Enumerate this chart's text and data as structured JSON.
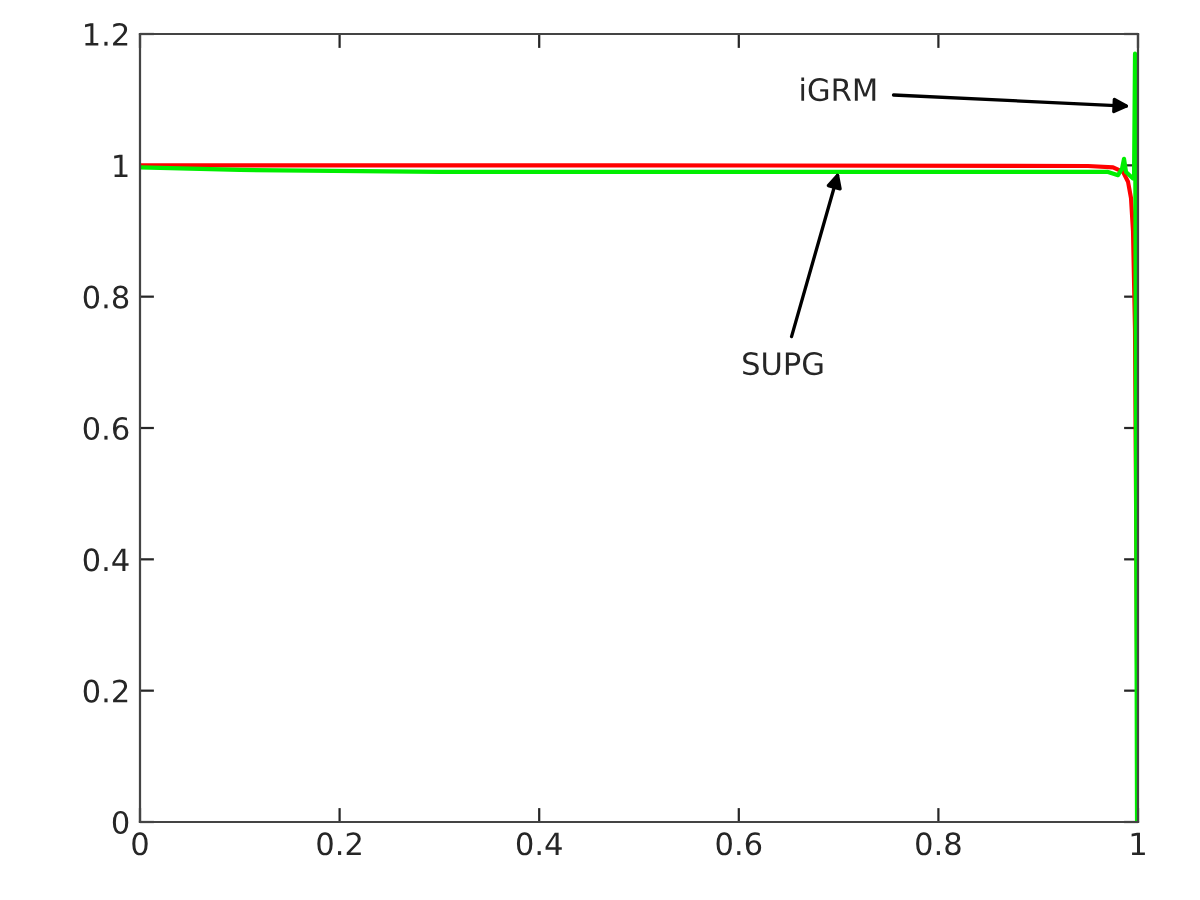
{
  "chart_data": {
    "type": "line",
    "series": [
      {
        "color": "#ff0000",
        "x": [
          0,
          0.5,
          0.95,
          0.975,
          0.985,
          0.99,
          0.993,
          0.995,
          0.997,
          0.998,
          0.999,
          1.0
        ],
        "values": [
          1.0,
          1.0,
          0.999,
          0.997,
          0.99,
          0.975,
          0.95,
          0.9,
          0.75,
          null,
          null,
          0
        ]
      },
      {
        "color": "#00ee00",
        "x": [
          0,
          0.1,
          0.3,
          0.6,
          0.9,
          0.97,
          0.98,
          0.984,
          0.986,
          0.988,
          0.995,
          0.996,
          0.997,
          0.999,
          1.0
        ],
        "values": [
          0.997,
          0.993,
          0.99,
          0.99,
          0.99,
          0.99,
          0.985,
          0.995,
          1.01,
          0.99,
          0.98,
          0.98,
          1.17,
          0,
          0
        ]
      }
    ],
    "annotations": [
      {
        "text": "iGRM",
        "x": 0.992,
        "y": 1.09
      },
      {
        "text": "SUPG",
        "x": 0.7,
        "y": 0.99
      }
    ],
    "xlim": [
      0,
      1
    ],
    "ylim": [
      0,
      1.2
    ],
    "xticks": [
      0,
      0.2,
      0.4,
      0.6,
      0.8,
      1
    ],
    "yticks": [
      0,
      0.2,
      0.4,
      0.6,
      0.8,
      1,
      1.2
    ],
    "grid": false,
    "legend": false,
    "line_style": "solid",
    "marker": "none"
  }
}
